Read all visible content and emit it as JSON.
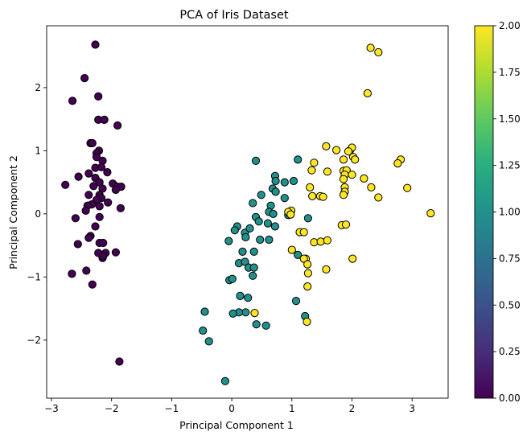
{
  "chart_data": {
    "type": "scatter",
    "title": "PCA of Iris Dataset",
    "xlabel": "Principal Component 1",
    "ylabel": "Principal Component 2",
    "xlim": [
      -3.08,
      3.6
    ],
    "ylim": [
      -2.92,
      2.98
    ],
    "x_ticks": [
      -3,
      -2,
      -1,
      0,
      1,
      2,
      3
    ],
    "y_ticks": [
      -2,
      -1,
      0,
      1,
      2
    ],
    "grid": false,
    "colorbar": {
      "colormap": "viridis",
      "range": [
        0,
        2
      ],
      "ticks": [
        "0.00",
        "0.25",
        "0.50",
        "0.75",
        "1.00",
        "1.25",
        "1.50",
        "1.75",
        "2.00"
      ]
    },
    "colors": {
      "class_0": "#440154",
      "class_1": "#21918c",
      "class_2": "#fde725",
      "edge": "#000000"
    },
    "series": [
      {
        "value": 0,
        "points": [
          [
            -2.27,
            2.68
          ],
          [
            -2.45,
            2.15
          ],
          [
            -2.65,
            1.79
          ],
          [
            -2.22,
            1.86
          ],
          [
            -2.22,
            1.49
          ],
          [
            -2.12,
            1.49
          ],
          [
            -1.9,
            1.4
          ],
          [
            -2.35,
            1.12
          ],
          [
            -2.32,
            1.12
          ],
          [
            -2.21,
            1.0
          ],
          [
            -2.25,
            0.96
          ],
          [
            -2.15,
            0.84
          ],
          [
            -2.25,
            0.9
          ],
          [
            -2.27,
            0.73
          ],
          [
            -2.17,
            0.74
          ],
          [
            -2.55,
            0.59
          ],
          [
            -2.38,
            0.64
          ],
          [
            -2.07,
            0.66
          ],
          [
            -2.27,
            0.57
          ],
          [
            -2.2,
            0.5
          ],
          [
            -2.3,
            0.44
          ],
          [
            -1.98,
            0.48
          ],
          [
            -2.77,
            0.46
          ],
          [
            -1.9,
            0.43
          ],
          [
            -1.84,
            0.43
          ],
          [
            -2.15,
            0.4
          ],
          [
            -1.93,
            0.38
          ],
          [
            -2.38,
            0.3
          ],
          [
            -2.2,
            0.3
          ],
          [
            -2.17,
            0.25
          ],
          [
            -2.25,
            0.22
          ],
          [
            -2.33,
            0.15
          ],
          [
            -2.06,
            0.18
          ],
          [
            -2.4,
            0.13
          ],
          [
            -2.2,
            0.12
          ],
          [
            -1.85,
            0.09
          ],
          [
            -2.43,
            0.05
          ],
          [
            -2.6,
            -0.07
          ],
          [
            -2.2,
            -0.05
          ],
          [
            -2.27,
            -0.2
          ],
          [
            -2.35,
            -0.35
          ],
          [
            -2.38,
            -0.38
          ],
          [
            -2.2,
            -0.46
          ],
          [
            -2.14,
            -0.46
          ],
          [
            -2.56,
            -0.48
          ],
          [
            -2.22,
            -0.62
          ],
          [
            -2.1,
            -0.62
          ],
          [
            -2.15,
            -0.7
          ],
          [
            -2.14,
            -0.67
          ],
          [
            -1.93,
            -0.61
          ],
          [
            -2.42,
            -0.9
          ],
          [
            -2.66,
            -0.95
          ],
          [
            -2.32,
            -1.12
          ],
          [
            -1.87,
            -2.34
          ]
        ]
      },
      {
        "value": 1,
        "points": [
          [
            0.4,
            0.84
          ],
          [
            1.1,
            0.86
          ],
          [
            0.72,
            0.6
          ],
          [
            1.03,
            0.52
          ],
          [
            0.88,
            0.5
          ],
          [
            0.73,
            0.52
          ],
          [
            0.68,
            0.4
          ],
          [
            0.88,
            0.25
          ],
          [
            0.73,
            0.35
          ],
          [
            0.49,
            0.3
          ],
          [
            0.35,
            0.17
          ],
          [
            0.65,
            0.13
          ],
          [
            0.62,
            0.03
          ],
          [
            0.69,
            0.0
          ],
          [
            0.4,
            -0.05
          ],
          [
            0.45,
            -0.12
          ],
          [
            0.6,
            -0.15
          ],
          [
            0.72,
            -0.2
          ],
          [
            1.27,
            -0.07
          ],
          [
            0.94,
            -0.02
          ],
          [
            0.09,
            -0.2
          ],
          [
            0.05,
            -0.26
          ],
          [
            0.22,
            -0.3
          ],
          [
            0.3,
            -0.23
          ],
          [
            0.23,
            -0.37
          ],
          [
            0.62,
            -0.41
          ],
          [
            0.47,
            -0.41
          ],
          [
            -0.05,
            -0.43
          ],
          [
            0.18,
            -0.6
          ],
          [
            0.37,
            -0.6
          ],
          [
            1.1,
            -0.65
          ],
          [
            0.12,
            -0.78
          ],
          [
            0.22,
            -0.76
          ],
          [
            0.28,
            -0.85
          ],
          [
            0.37,
            -0.85
          ],
          [
            0.35,
            -0.98
          ],
          [
            -0.04,
            -1.05
          ],
          [
            0.01,
            -1.03
          ],
          [
            0.14,
            -1.3
          ],
          [
            0.27,
            -1.33
          ],
          [
            1.07,
            -1.38
          ],
          [
            0.23,
            -1.56
          ],
          [
            0.12,
            -1.56
          ],
          [
            0.02,
            -1.58
          ],
          [
            -0.45,
            -1.55
          ],
          [
            0.41,
            -1.75
          ],
          [
            0.57,
            -1.77
          ],
          [
            1.22,
            -1.62
          ],
          [
            -0.48,
            -1.85
          ],
          [
            -0.38,
            -2.02
          ],
          [
            -0.11,
            -2.65
          ]
        ]
      },
      {
        "value": 2,
        "points": [
          [
            2.31,
            2.63
          ],
          [
            2.44,
            2.56
          ],
          [
            2.26,
            1.91
          ],
          [
            1.57,
            1.07
          ],
          [
            1.97,
            1.01
          ],
          [
            1.74,
            1.01
          ],
          [
            2.0,
            1.05
          ],
          [
            1.94,
            0.99
          ],
          [
            2.02,
            0.9
          ],
          [
            2.05,
            0.86
          ],
          [
            2.81,
            0.86
          ],
          [
            2.76,
            0.8
          ],
          [
            1.86,
            0.86
          ],
          [
            1.37,
            0.81
          ],
          [
            1.86,
            0.68
          ],
          [
            1.91,
            0.69
          ],
          [
            1.33,
            0.69
          ],
          [
            1.59,
            0.67
          ],
          [
            1.88,
            0.62
          ],
          [
            2.0,
            0.62
          ],
          [
            1.86,
            0.55
          ],
          [
            2.2,
            0.56
          ],
          [
            1.3,
            0.42
          ],
          [
            2.32,
            0.42
          ],
          [
            2.92,
            0.41
          ],
          [
            1.88,
            0.42
          ],
          [
            1.88,
            0.35
          ],
          [
            1.47,
            0.28
          ],
          [
            1.52,
            0.27
          ],
          [
            1.86,
            0.3
          ],
          [
            2.44,
            0.26
          ],
          [
            1.34,
            0.28
          ],
          [
            0.99,
            0.05
          ],
          [
            0.94,
            0.03
          ],
          [
            0.98,
            -0.01
          ],
          [
            3.31,
            0.01
          ],
          [
            1.13,
            -0.29
          ],
          [
            1.2,
            -0.29
          ],
          [
            1.83,
            -0.18
          ],
          [
            1.9,
            -0.17
          ],
          [
            1.37,
            -0.45
          ],
          [
            1.48,
            -0.44
          ],
          [
            1.59,
            -0.42
          ],
          [
            1.0,
            -0.57
          ],
          [
            1.23,
            -0.71
          ],
          [
            1.2,
            -0.71
          ],
          [
            1.26,
            -0.8
          ],
          [
            2.01,
            -0.71
          ],
          [
            1.57,
            -0.88
          ],
          [
            1.27,
            -0.94
          ],
          [
            1.26,
            -1.15
          ],
          [
            0.38,
            -1.57
          ],
          [
            1.25,
            -1.71
          ]
        ]
      }
    ]
  }
}
